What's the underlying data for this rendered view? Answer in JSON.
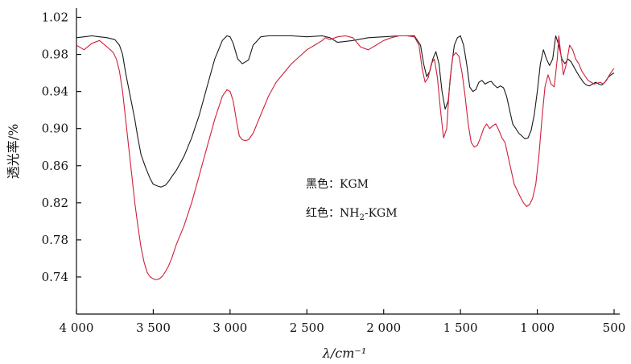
{
  "chart_data": {
    "type": "line",
    "title": "",
    "xlabel": "λ/cm⁻¹",
    "ylabel": "透光率/%",
    "x_reversed": true,
    "xlim": [
      4000,
      500
    ],
    "ylim": [
      0.7,
      1.03
    ],
    "x_ticks": [
      {
        "value": 4000,
        "label": "4 000"
      },
      {
        "value": 3500,
        "label": "3 500"
      },
      {
        "value": 3000,
        "label": "3 000"
      },
      {
        "value": 2500,
        "label": "2 500"
      },
      {
        "value": 2000,
        "label": "2 000"
      },
      {
        "value": 1500,
        "label": "1 500"
      },
      {
        "value": 1000,
        "label": "1 000"
      },
      {
        "value": 500,
        "label": "500"
      }
    ],
    "y_ticks": [
      {
        "value": 1.02,
        "label": "1.02"
      },
      {
        "value": 0.98,
        "label": "0.98"
      },
      {
        "value": 0.94,
        "label": "0.94"
      },
      {
        "value": 0.9,
        "label": "0.90"
      },
      {
        "value": 0.86,
        "label": "0.86"
      },
      {
        "value": 0.82,
        "label": "0.82"
      },
      {
        "value": 0.78,
        "label": "0.78"
      },
      {
        "value": 0.74,
        "label": "0.74"
      }
    ],
    "grid": false,
    "legend": {
      "placement": "center",
      "entries": [
        {
          "prefix": "黑色：",
          "text": "KGM"
        },
        {
          "prefix": "红色：",
          "text": "NH",
          "sub": "2",
          "suffix": "-KGM"
        }
      ]
    },
    "series": [
      {
        "name": "KGM",
        "color": "#1a1a1a",
        "x": [
          4000,
          3950,
          3900,
          3850,
          3800,
          3750,
          3720,
          3700,
          3680,
          3650,
          3620,
          3600,
          3580,
          3550,
          3520,
          3500,
          3470,
          3450,
          3420,
          3400,
          3380,
          3350,
          3300,
          3250,
          3200,
          3150,
          3100,
          3050,
          3020,
          3000,
          2980,
          2950,
          2920,
          2900,
          2880,
          2850,
          2800,
          2750,
          2700,
          2600,
          2500,
          2400,
          2350,
          2300,
          2200,
          2100,
          2000,
          1900,
          1800,
          1760,
          1740,
          1720,
          1700,
          1680,
          1660,
          1640,
          1620,
          1600,
          1580,
          1560,
          1540,
          1520,
          1500,
          1480,
          1460,
          1440,
          1420,
          1400,
          1380,
          1360,
          1340,
          1320,
          1300,
          1280,
          1260,
          1240,
          1220,
          1200,
          1180,
          1160,
          1140,
          1120,
          1100,
          1080,
          1060,
          1040,
          1020,
          1000,
          980,
          960,
          940,
          920,
          900,
          880,
          860,
          840,
          820,
          800,
          780,
          760,
          740,
          720,
          700,
          680,
          660,
          640,
          620,
          600,
          580,
          560,
          540,
          520,
          500
        ],
        "y": [
          0.998,
          0.999,
          1.0,
          0.999,
          0.998,
          0.996,
          0.99,
          0.98,
          0.96,
          0.935,
          0.91,
          0.89,
          0.872,
          0.858,
          0.846,
          0.84,
          0.838,
          0.837,
          0.839,
          0.843,
          0.848,
          0.855,
          0.87,
          0.89,
          0.915,
          0.945,
          0.975,
          0.995,
          1.0,
          0.999,
          0.992,
          0.975,
          0.97,
          0.972,
          0.974,
          0.99,
          0.999,
          1.0,
          1.0,
          1.0,
          0.999,
          1.0,
          0.998,
          0.993,
          0.995,
          0.998,
          0.999,
          1.0,
          1.0,
          0.99,
          0.97,
          0.956,
          0.962,
          0.975,
          0.983,
          0.97,
          0.94,
          0.921,
          0.93,
          0.965,
          0.99,
          0.998,
          1.0,
          0.99,
          0.97,
          0.945,
          0.94,
          0.942,
          0.95,
          0.952,
          0.948,
          0.95,
          0.951,
          0.947,
          0.944,
          0.946,
          0.944,
          0.935,
          0.92,
          0.905,
          0.9,
          0.895,
          0.892,
          0.889,
          0.89,
          0.898,
          0.915,
          0.94,
          0.97,
          0.985,
          0.975,
          0.968,
          0.975,
          1.0,
          0.99,
          0.975,
          0.97,
          0.975,
          0.972,
          0.966,
          0.96,
          0.955,
          0.95,
          0.947,
          0.946,
          0.948,
          0.95,
          0.948,
          0.947,
          0.95,
          0.955,
          0.958,
          0.96
        ]
      },
      {
        "name": "NH₂-KGM",
        "color": "#d0203a",
        "x": [
          4000,
          3950,
          3900,
          3850,
          3800,
          3760,
          3740,
          3720,
          3700,
          3680,
          3660,
          3640,
          3620,
          3600,
          3580,
          3560,
          3540,
          3520,
          3500,
          3480,
          3460,
          3440,
          3420,
          3400,
          3380,
          3350,
          3300,
          3250,
          3200,
          3150,
          3100,
          3050,
          3020,
          3000,
          2980,
          2960,
          2940,
          2920,
          2900,
          2880,
          2850,
          2800,
          2750,
          2700,
          2600,
          2500,
          2450,
          2400,
          2380,
          2350,
          2300,
          2250,
          2200,
          2150,
          2100,
          2050,
          2000,
          1950,
          1900,
          1850,
          1800,
          1770,
          1750,
          1730,
          1710,
          1690,
          1670,
          1650,
          1630,
          1610,
          1590,
          1570,
          1550,
          1530,
          1510,
          1490,
          1470,
          1450,
          1430,
          1410,
          1390,
          1370,
          1350,
          1330,
          1310,
          1290,
          1270,
          1250,
          1230,
          1210,
          1190,
          1170,
          1150,
          1130,
          1110,
          1090,
          1070,
          1050,
          1030,
          1010,
          990,
          970,
          950,
          930,
          910,
          890,
          870,
          860,
          850,
          830,
          810,
          790,
          770,
          750,
          730,
          710,
          690,
          670,
          650,
          630,
          610,
          590,
          570,
          550,
          530,
          510,
          500
        ],
        "y": [
          0.99,
          0.985,
          0.992,
          0.995,
          0.988,
          0.982,
          0.975,
          0.962,
          0.94,
          0.91,
          0.88,
          0.85,
          0.82,
          0.795,
          0.772,
          0.756,
          0.745,
          0.74,
          0.738,
          0.737,
          0.738,
          0.741,
          0.746,
          0.752,
          0.76,
          0.775,
          0.795,
          0.82,
          0.85,
          0.88,
          0.91,
          0.935,
          0.942,
          0.94,
          0.93,
          0.91,
          0.892,
          0.888,
          0.887,
          0.888,
          0.895,
          0.915,
          0.935,
          0.95,
          0.97,
          0.985,
          0.99,
          0.995,
          0.998,
          0.996,
          0.999,
          1.0,
          0.998,
          0.988,
          0.985,
          0.99,
          0.995,
          0.998,
          1.0,
          1.0,
          0.999,
          0.99,
          0.965,
          0.95,
          0.955,
          0.97,
          0.975,
          0.955,
          0.92,
          0.89,
          0.9,
          0.95,
          0.978,
          0.982,
          0.978,
          0.96,
          0.935,
          0.905,
          0.885,
          0.88,
          0.882,
          0.89,
          0.9,
          0.905,
          0.9,
          0.903,
          0.905,
          0.898,
          0.89,
          0.885,
          0.87,
          0.855,
          0.84,
          0.833,
          0.826,
          0.82,
          0.816,
          0.818,
          0.825,
          0.84,
          0.87,
          0.91,
          0.945,
          0.958,
          0.948,
          0.945,
          0.975,
          1.0,
          0.985,
          0.958,
          0.97,
          0.99,
          0.985,
          0.975,
          0.97,
          0.962,
          0.957,
          0.952,
          0.95,
          0.948,
          0.949,
          0.95,
          0.948,
          0.952,
          0.958,
          0.963,
          0.965
        ]
      }
    ]
  }
}
